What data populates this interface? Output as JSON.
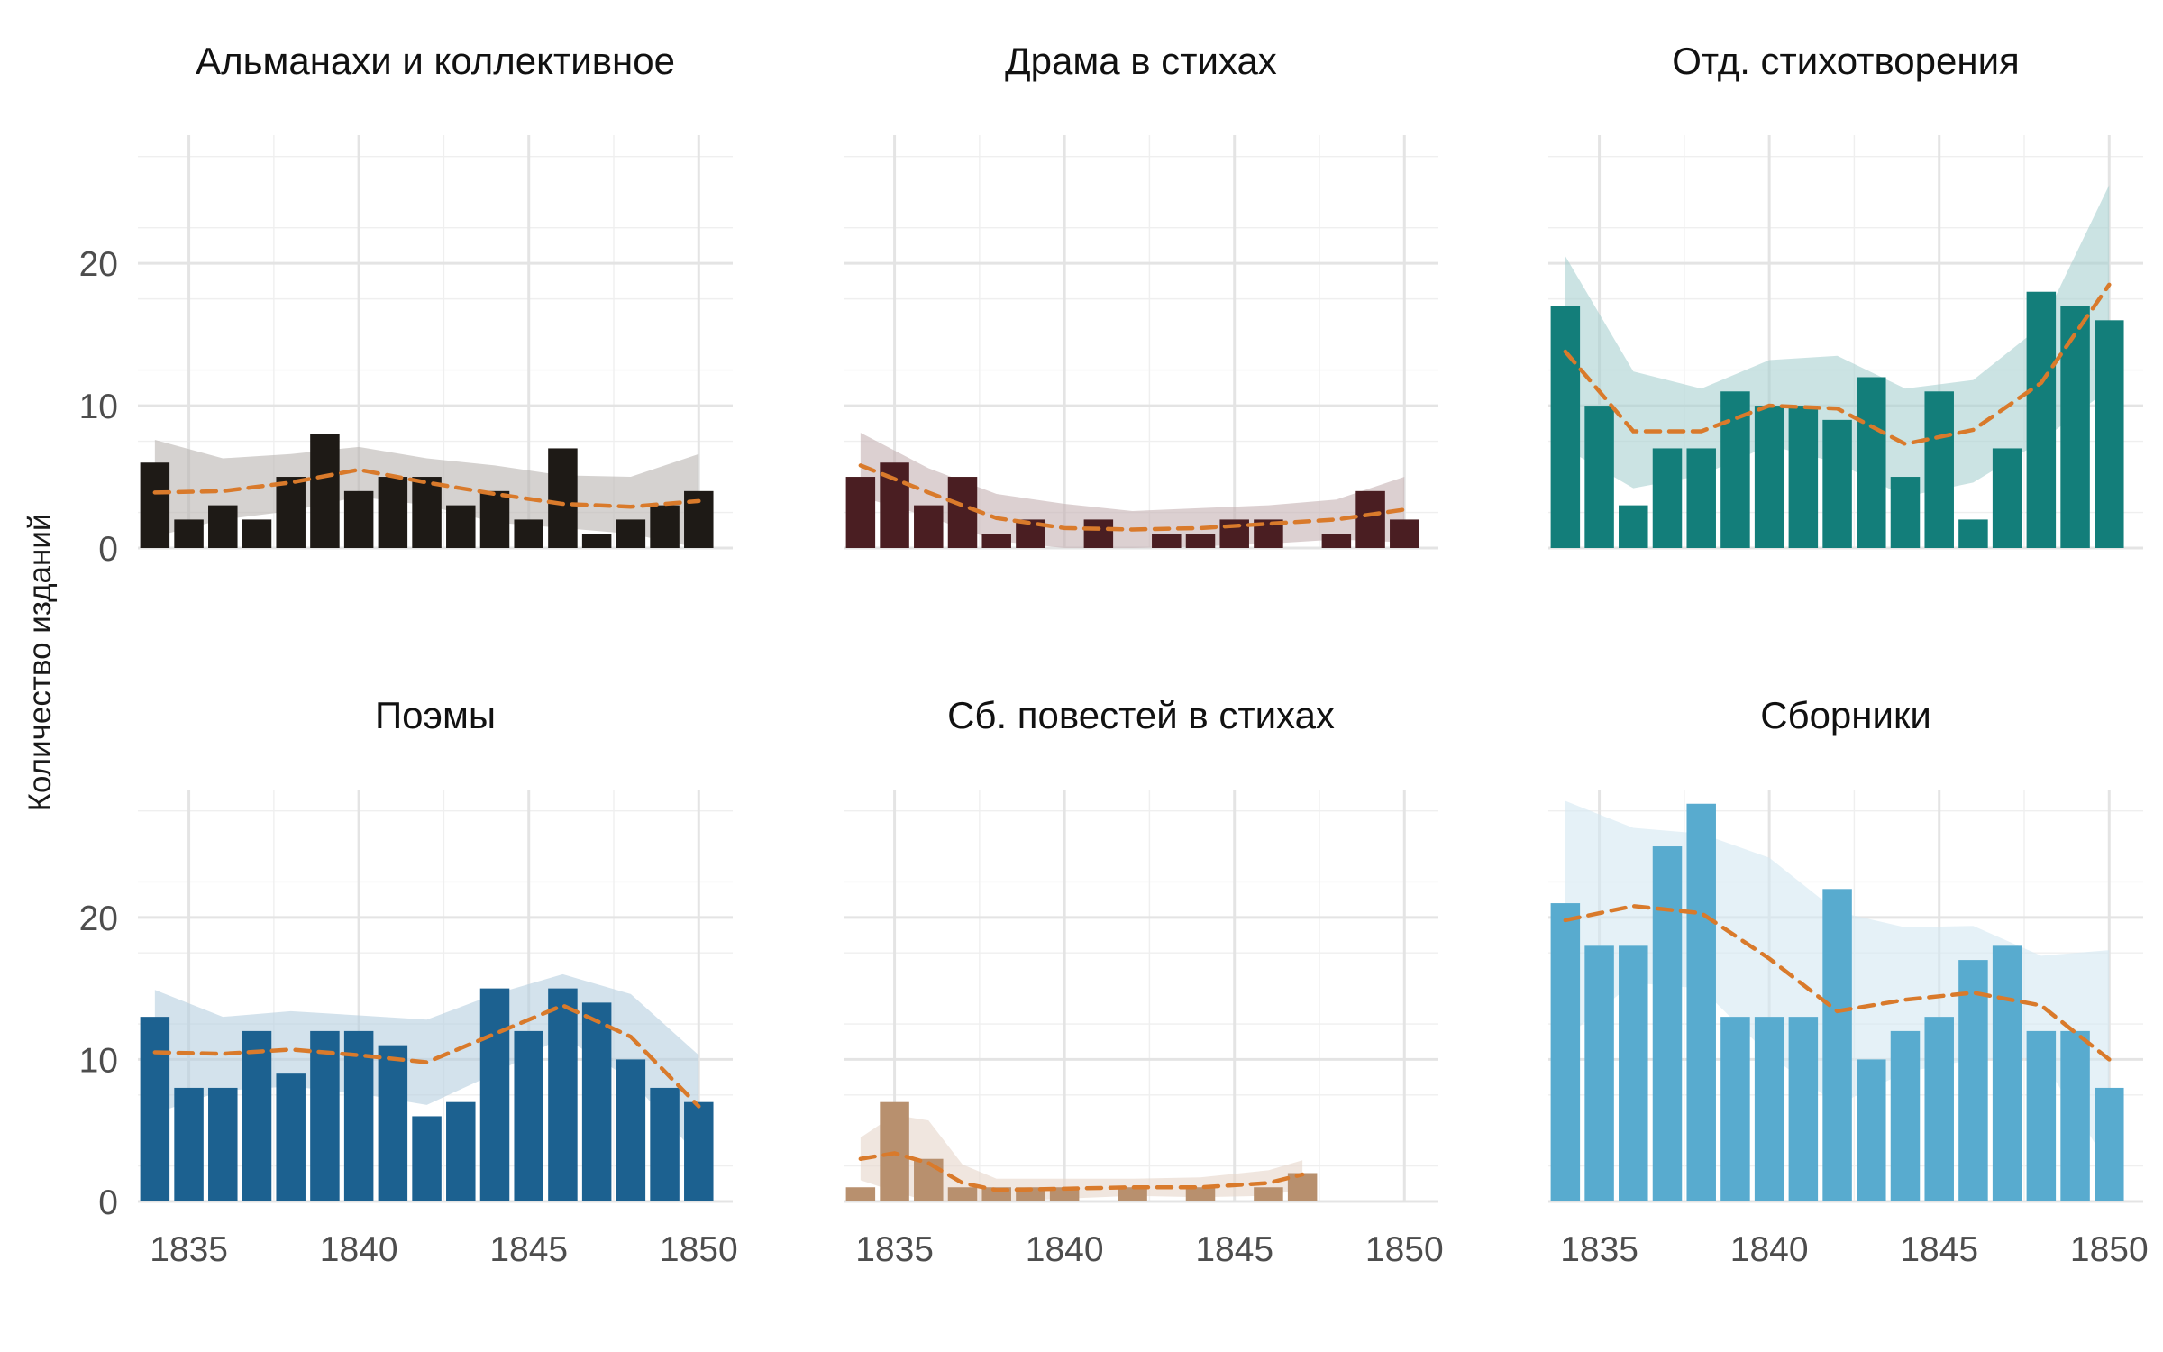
{
  "chart_data": {
    "type": "bar",
    "ylabel": "Количество изданий",
    "x_ticks": [
      1835,
      1840,
      1845,
      1850
    ],
    "y_ticks": [
      0,
      10,
      20
    ],
    "ylim": [
      0,
      29
    ],
    "xlim": [
      1833.5,
      1851
    ],
    "grid": true,
    "trend_color": "#D97A2B",
    "panels": [
      {
        "title": "Альманахи и коллективное",
        "color": "#1E1A16",
        "band_color": "#B9B4B0",
        "x": [
          1834,
          1835,
          1836,
          1837,
          1838,
          1839,
          1840,
          1841,
          1842,
          1843,
          1844,
          1845,
          1846,
          1847,
          1848,
          1849,
          1850
        ],
        "values": [
          6,
          2,
          3,
          2,
          5,
          8,
          4,
          5,
          5,
          3,
          4,
          2,
          7,
          1,
          2,
          3,
          4
        ],
        "trend": [
          [
            1834,
            3.9
          ],
          [
            1836,
            4.0
          ],
          [
            1838,
            4.6
          ],
          [
            1840,
            5.5
          ],
          [
            1842,
            4.6
          ],
          [
            1844,
            3.8
          ],
          [
            1846,
            3.1
          ],
          [
            1848,
            2.9
          ],
          [
            1850,
            3.3
          ]
        ],
        "band_upper": [
          [
            1834,
            7.6
          ],
          [
            1836,
            6.3
          ],
          [
            1838,
            6.6
          ],
          [
            1840,
            7.1
          ],
          [
            1842,
            6.3
          ],
          [
            1844,
            5.8
          ],
          [
            1846,
            5.1
          ],
          [
            1848,
            5.0
          ],
          [
            1850,
            6.6
          ]
        ],
        "band_lower": [
          [
            1834,
            0.8
          ],
          [
            1836,
            2.0
          ],
          [
            1838,
            2.6
          ],
          [
            1840,
            3.6
          ],
          [
            1842,
            3.0
          ],
          [
            1844,
            1.8
          ],
          [
            1846,
            1.4
          ],
          [
            1848,
            1.0
          ],
          [
            1850,
            0.0
          ]
        ]
      },
      {
        "title": "Драма в стихах",
        "color": "#4A1E22",
        "band_color": "#C4B0B2",
        "x": [
          1834,
          1835,
          1836,
          1837,
          1838,
          1839,
          1841,
          1843,
          1844,
          1845,
          1846,
          1848,
          1849,
          1850
        ],
        "values": [
          5,
          6,
          3,
          5,
          1,
          2,
          2,
          1,
          1,
          2,
          2,
          1,
          4,
          2
        ],
        "trend": [
          [
            1834,
            5.8
          ],
          [
            1836,
            3.9
          ],
          [
            1838,
            2.1
          ],
          [
            1840,
            1.4
          ],
          [
            1842,
            1.3
          ],
          [
            1844,
            1.4
          ],
          [
            1846,
            1.7
          ],
          [
            1848,
            2.0
          ],
          [
            1850,
            2.7
          ]
        ],
        "band_upper": [
          [
            1834,
            8.1
          ],
          [
            1836,
            5.6
          ],
          [
            1838,
            3.8
          ],
          [
            1840,
            3.1
          ],
          [
            1842,
            2.6
          ],
          [
            1844,
            2.8
          ],
          [
            1846,
            3.0
          ],
          [
            1848,
            3.4
          ],
          [
            1850,
            5.0
          ]
        ],
        "band_lower": [
          [
            1834,
            3.6
          ],
          [
            1836,
            2.2
          ],
          [
            1838,
            0.5
          ],
          [
            1840,
            0.0
          ],
          [
            1842,
            0.0
          ],
          [
            1844,
            0.1
          ],
          [
            1846,
            0.3
          ],
          [
            1848,
            0.6
          ],
          [
            1850,
            0.4
          ]
        ]
      },
      {
        "title": "Отд. стихотворения",
        "color": "#137E7A",
        "band_color": "#A9D1D1",
        "x": [
          1834,
          1835,
          1836,
          1837,
          1838,
          1839,
          1840,
          1841,
          1842,
          1843,
          1844,
          1845,
          1846,
          1847,
          1848,
          1849,
          1850
        ],
        "values": [
          17,
          10,
          3,
          7,
          7,
          11,
          10,
          10,
          9,
          12,
          5,
          11,
          2,
          7,
          18,
          17,
          16
        ],
        "trend": [
          [
            1834,
            13.8
          ],
          [
            1836,
            8.2
          ],
          [
            1838,
            8.2
          ],
          [
            1840,
            10.0
          ],
          [
            1842,
            9.8
          ],
          [
            1844,
            7.3
          ],
          [
            1846,
            8.3
          ],
          [
            1848,
            11.6
          ],
          [
            1850,
            18.5
          ]
        ],
        "band_upper": [
          [
            1834,
            20.5
          ],
          [
            1836,
            12.4
          ],
          [
            1838,
            11.2
          ],
          [
            1840,
            13.2
          ],
          [
            1842,
            13.5
          ],
          [
            1844,
            11.2
          ],
          [
            1846,
            11.8
          ],
          [
            1848,
            15.6
          ],
          [
            1850,
            25.5
          ]
        ],
        "band_lower": [
          [
            1834,
            7.0
          ],
          [
            1836,
            4.2
          ],
          [
            1838,
            5.1
          ],
          [
            1840,
            7.2
          ],
          [
            1842,
            6.0
          ],
          [
            1844,
            3.6
          ],
          [
            1846,
            4.6
          ],
          [
            1848,
            7.5
          ],
          [
            1850,
            11.2
          ]
        ]
      },
      {
        "title": "Поэмы",
        "color": "#1C6190",
        "band_color": "#B5CEE0",
        "x": [
          1834,
          1835,
          1836,
          1837,
          1838,
          1839,
          1840,
          1841,
          1842,
          1843,
          1844,
          1845,
          1846,
          1847,
          1848,
          1849,
          1850
        ],
        "values": [
          13,
          8,
          8,
          12,
          9,
          12,
          12,
          11,
          6,
          7,
          15,
          12,
          15,
          14,
          10,
          8,
          7
        ],
        "trend": [
          [
            1834,
            10.5
          ],
          [
            1836,
            10.4
          ],
          [
            1838,
            10.7
          ],
          [
            1840,
            10.3
          ],
          [
            1842,
            9.8
          ],
          [
            1844,
            11.8
          ],
          [
            1846,
            13.8
          ],
          [
            1848,
            11.6
          ],
          [
            1850,
            6.7
          ]
        ],
        "band_upper": [
          [
            1834,
            14.9
          ],
          [
            1836,
            13.0
          ],
          [
            1838,
            13.4
          ],
          [
            1840,
            13.1
          ],
          [
            1842,
            12.8
          ],
          [
            1844,
            14.6
          ],
          [
            1846,
            16.0
          ],
          [
            1848,
            14.6
          ],
          [
            1850,
            10.3
          ]
        ],
        "band_lower": [
          [
            1834,
            6.2
          ],
          [
            1836,
            7.8
          ],
          [
            1838,
            8.1
          ],
          [
            1840,
            7.6
          ],
          [
            1842,
            6.8
          ],
          [
            1844,
            9.0
          ],
          [
            1846,
            11.6
          ],
          [
            1848,
            8.6
          ],
          [
            1850,
            3.1
          ]
        ]
      },
      {
        "title": "Сб. повестей в стихах",
        "color": "#B8906E",
        "band_color": "#E6D6CA",
        "x": [
          1834,
          1835,
          1836,
          1837,
          1838,
          1839,
          1840,
          1842,
          1844,
          1846,
          1847
        ],
        "values": [
          1,
          7,
          3,
          1,
          1,
          1,
          1,
          1,
          1,
          1,
          2
        ],
        "trend": [
          [
            1834,
            3.0
          ],
          [
            1835,
            3.4
          ],
          [
            1836,
            2.7
          ],
          [
            1837,
            1.3
          ],
          [
            1838,
            0.8
          ],
          [
            1840,
            0.9
          ],
          [
            1842,
            1.0
          ],
          [
            1844,
            1.0
          ],
          [
            1846,
            1.3
          ],
          [
            1847,
            1.9
          ]
        ],
        "band_upper": [
          [
            1834,
            4.5
          ],
          [
            1835,
            6.1
          ],
          [
            1836,
            5.7
          ],
          [
            1837,
            2.6
          ],
          [
            1838,
            1.6
          ],
          [
            1840,
            1.6
          ],
          [
            1842,
            1.6
          ],
          [
            1844,
            1.7
          ],
          [
            1846,
            2.2
          ],
          [
            1847,
            2.9
          ]
        ],
        "band_lower": [
          [
            1834,
            1.5
          ],
          [
            1835,
            0.7
          ],
          [
            1836,
            0.0
          ],
          [
            1837,
            0.0
          ],
          [
            1838,
            0.0
          ],
          [
            1840,
            0.2
          ],
          [
            1842,
            0.4
          ],
          [
            1844,
            0.3
          ],
          [
            1846,
            0.4
          ],
          [
            1847,
            0.9
          ]
        ]
      },
      {
        "title": "Сборники",
        "color": "#58ABCF",
        "band_color": "#D4E8F2",
        "x": [
          1834,
          1835,
          1836,
          1837,
          1838,
          1839,
          1840,
          1841,
          1842,
          1843,
          1844,
          1845,
          1846,
          1847,
          1848,
          1849,
          1850
        ],
        "values": [
          21,
          18,
          18,
          25,
          28,
          13,
          13,
          13,
          22,
          10,
          12,
          13,
          17,
          18,
          12,
          12,
          8
        ],
        "trend": [
          [
            1834,
            19.8
          ],
          [
            1836,
            20.8
          ],
          [
            1838,
            20.3
          ],
          [
            1840,
            17.1
          ],
          [
            1842,
            13.4
          ],
          [
            1844,
            14.2
          ],
          [
            1846,
            14.7
          ],
          [
            1848,
            13.8
          ],
          [
            1850,
            10.0
          ]
        ],
        "band_upper": [
          [
            1834,
            28.2
          ],
          [
            1836,
            26.3
          ],
          [
            1838,
            25.9
          ],
          [
            1840,
            24.2
          ],
          [
            1842,
            20.4
          ],
          [
            1844,
            19.3
          ],
          [
            1846,
            19.4
          ],
          [
            1848,
            17.3
          ],
          [
            1850,
            17.7
          ]
        ],
        "band_lower": [
          [
            1834,
            11.5
          ],
          [
            1836,
            15.4
          ],
          [
            1838,
            15.0
          ],
          [
            1840,
            10.3
          ],
          [
            1842,
            6.8
          ],
          [
            1844,
            9.1
          ],
          [
            1846,
            10.0
          ],
          [
            1848,
            10.1
          ],
          [
            1850,
            2.5
          ]
        ]
      }
    ]
  }
}
